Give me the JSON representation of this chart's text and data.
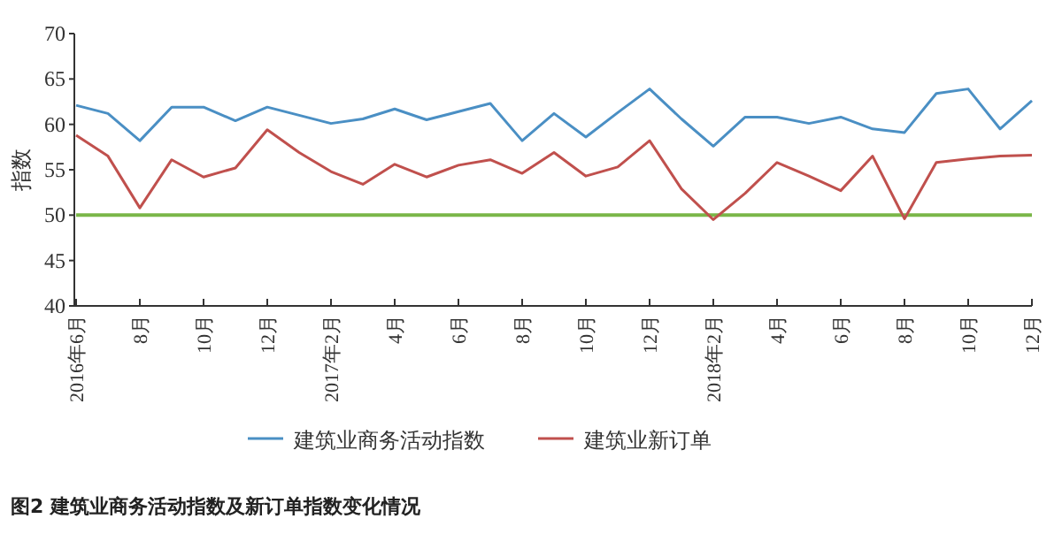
{
  "chart_data": {
    "type": "line",
    "ylabel": "指数",
    "categories": [
      "2016年6月",
      null,
      "8月",
      null,
      "10月",
      null,
      "12月",
      null,
      "2017年2月",
      null,
      "4月",
      null,
      "6月",
      null,
      "8月",
      null,
      "10月",
      null,
      "12月",
      null,
      "2018年2月",
      null,
      "4月",
      null,
      "6月",
      null,
      "8月",
      null,
      "10月",
      null,
      "12月"
    ],
    "series": [
      {
        "name": "建筑业商务活动指数",
        "color": "#4a8fc4",
        "values": [
          62.1,
          61.2,
          58.2,
          61.9,
          61.9,
          60.4,
          61.9,
          61.0,
          60.1,
          60.6,
          61.7,
          60.5,
          61.4,
          62.3,
          58.2,
          61.2,
          58.6,
          61.3,
          63.9,
          60.6,
          57.6,
          60.8,
          60.8,
          60.1,
          60.8,
          59.5,
          59.1,
          63.4,
          63.9,
          59.5,
          62.6
        ]
      },
      {
        "name": "建筑业新订单",
        "color": "#c0504d",
        "values": [
          58.8,
          56.5,
          50.8,
          56.1,
          54.2,
          55.2,
          59.4,
          56.9,
          54.8,
          53.4,
          55.6,
          54.2,
          55.5,
          56.1,
          54.6,
          56.9,
          54.3,
          55.3,
          58.2,
          52.9,
          49.5,
          52.4,
          55.8,
          54.3,
          52.7,
          56.5,
          49.6,
          55.8,
          56.2,
          56.5,
          56.6
        ]
      }
    ],
    "ylim": [
      40,
      70
    ],
    "yticks": [
      40,
      45,
      50,
      55,
      60,
      65,
      70
    ],
    "ref_lines": [
      {
        "axis": "y",
        "value": 50,
        "color": "#7ab648"
      }
    ],
    "legend": "bottom",
    "annotations": [
      "图2  建筑业商务活动指数及新订单指数变化情况"
    ]
  }
}
